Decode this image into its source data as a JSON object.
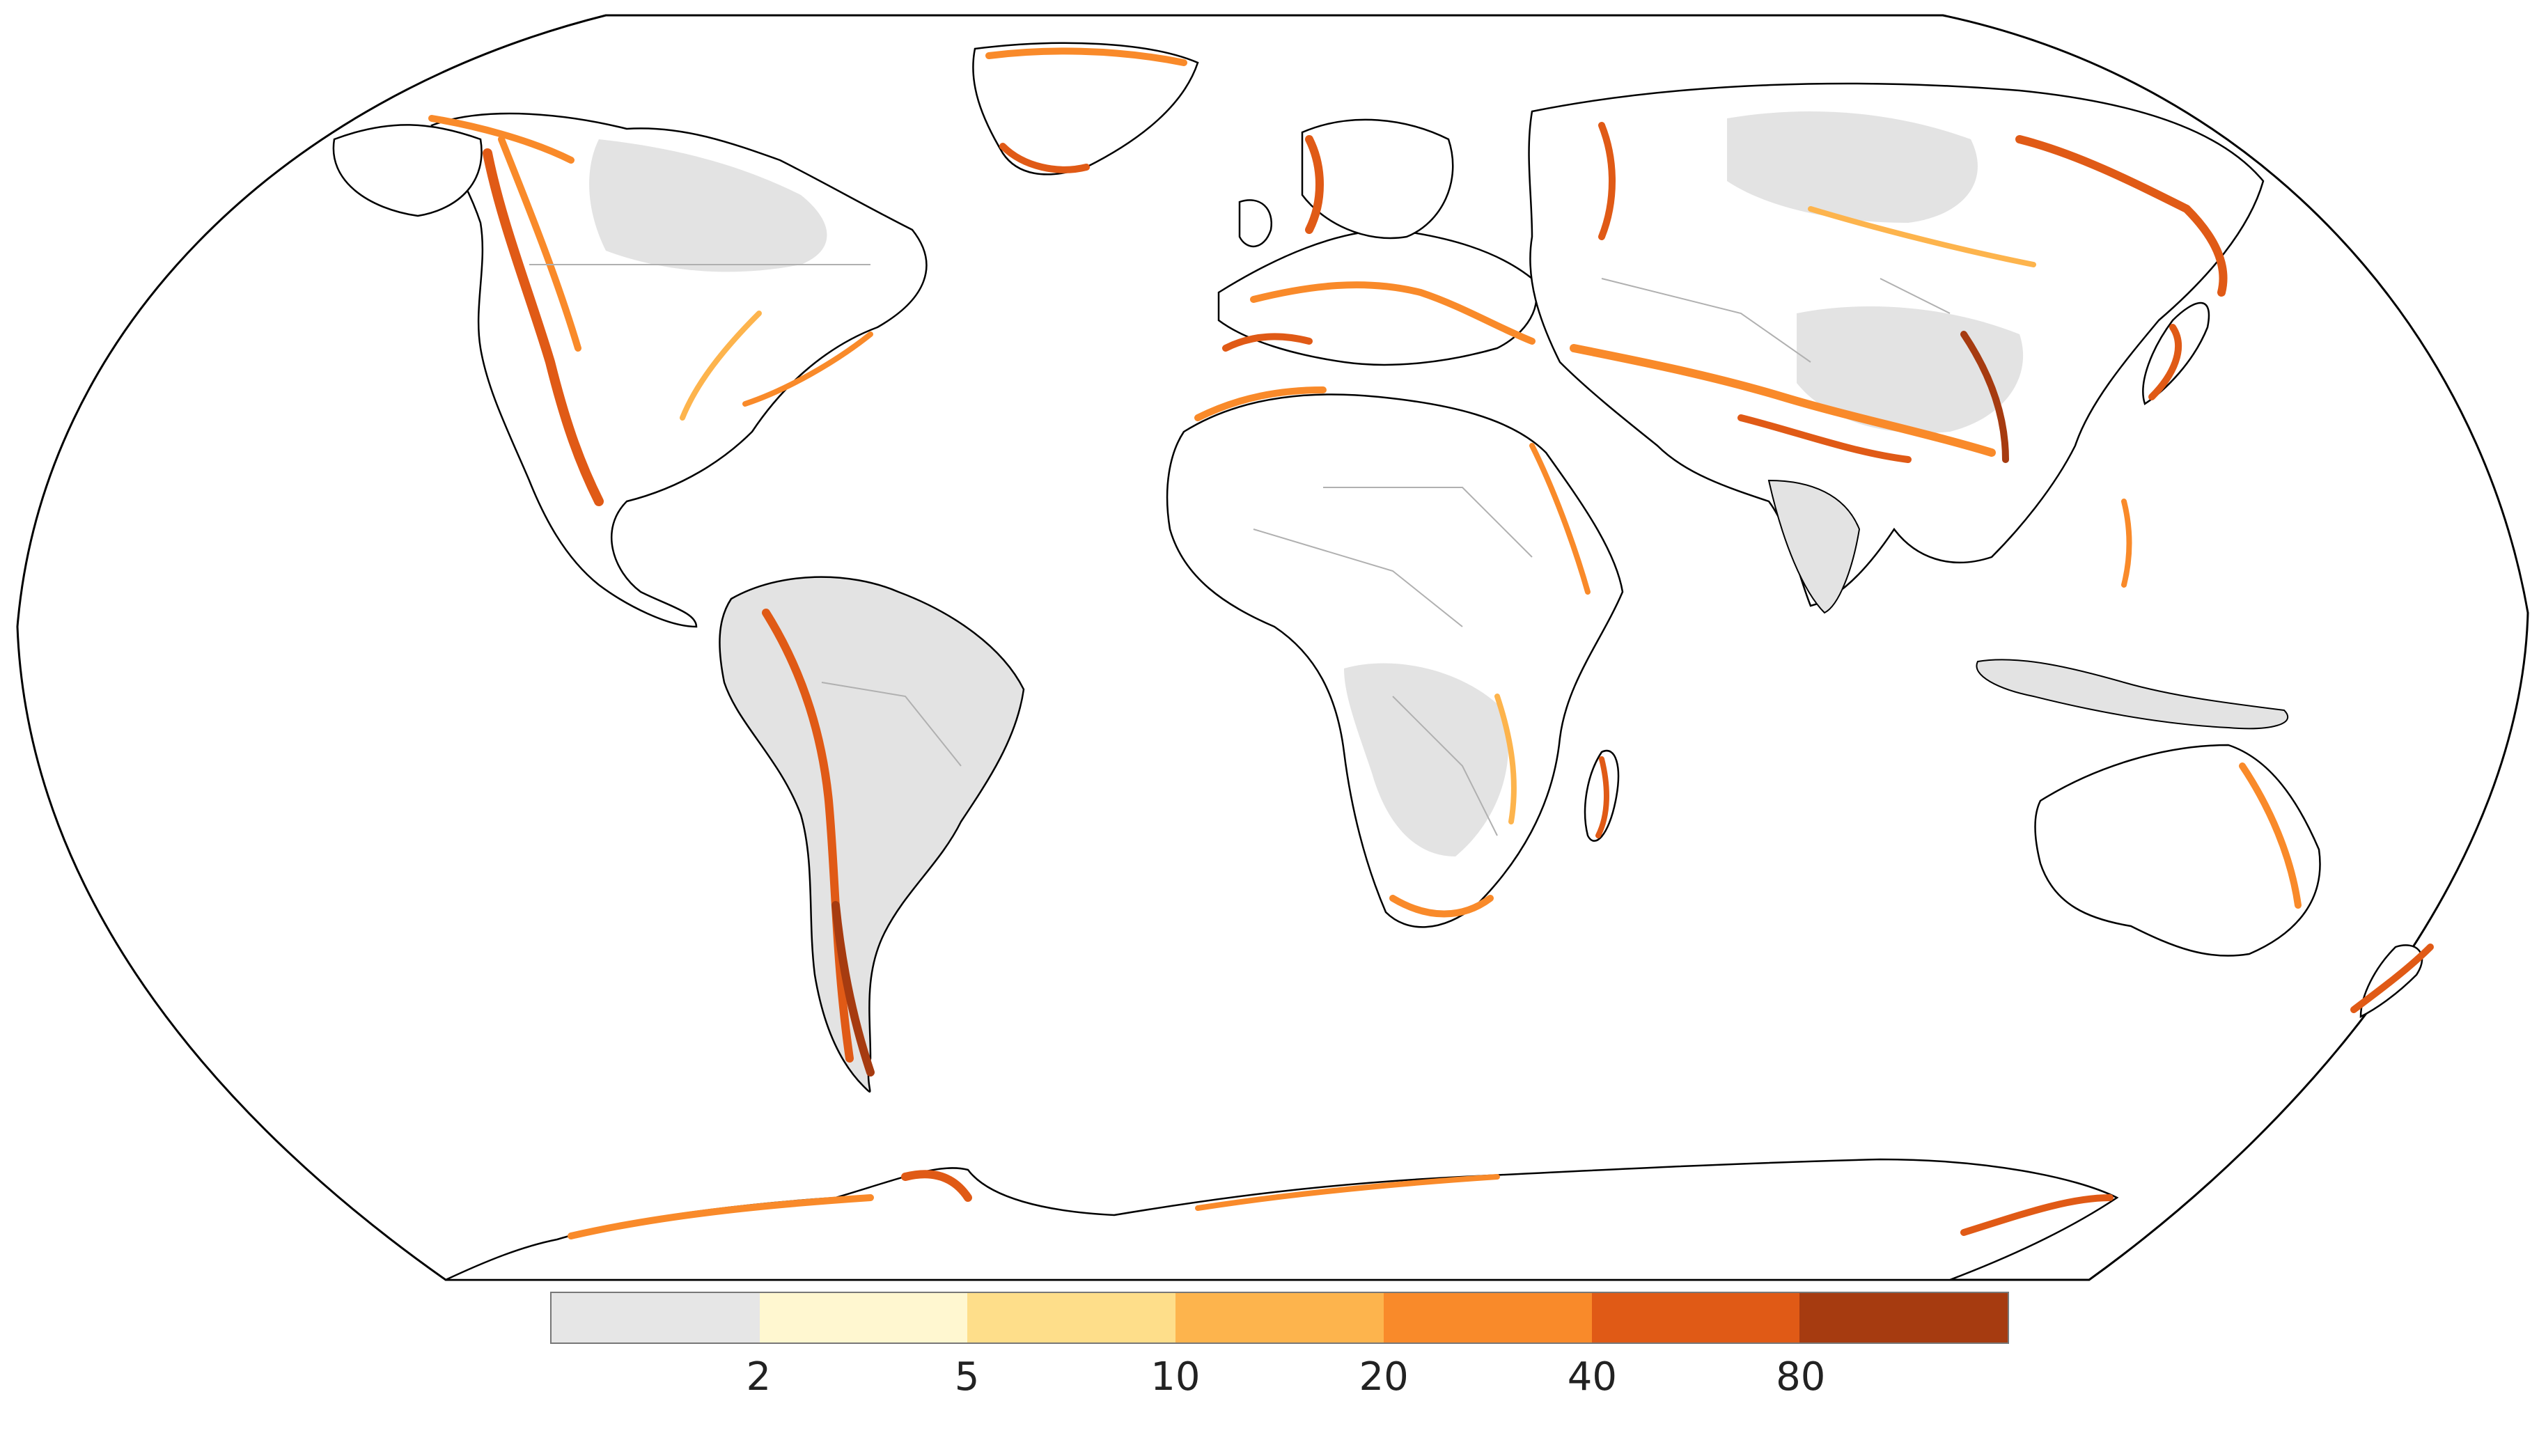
{
  "legend": {
    "colors": [
      "#e6e6e6",
      "#fff7d0",
      "#fede8a",
      "#fdb44d",
      "#f98a2a",
      "#e05a16",
      "#a63b10"
    ],
    "ticks": [
      "2",
      "5",
      "10",
      "20",
      "40",
      "80"
    ]
  },
  "map": {
    "ocean_color": "#ffffff",
    "land_base_color": "#ffffff",
    "land_low_color": "#e3e3e3",
    "border_color": "#b0b0b0",
    "coast_color": "#000000"
  }
}
